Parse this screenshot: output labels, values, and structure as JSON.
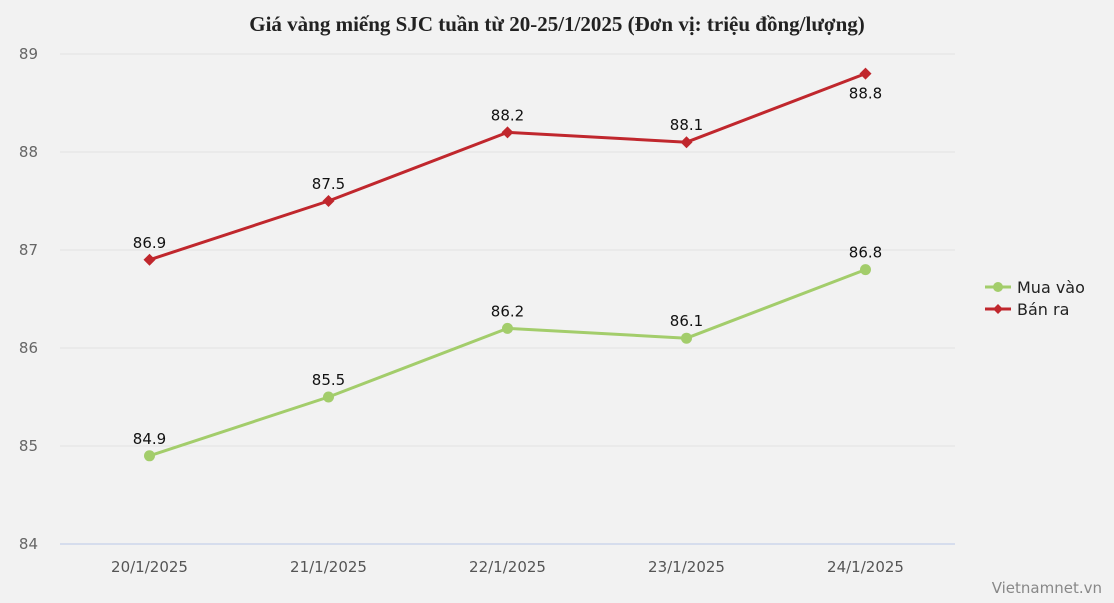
{
  "title": "Giá vàng miếng SJC tuần từ 20-25/1/2025 (Đơn vị: triệu đồng/lượng)",
  "credit": "Vietnamnet.vn",
  "legend": [
    {
      "label": "Mua vào",
      "color": "#a3cd6b",
      "marker": "circle"
    },
    {
      "label": "Bán ra",
      "color": "#c0272d",
      "marker": "diamond"
    }
  ],
  "chart_data": {
    "type": "line",
    "title": "Giá vàng miếng SJC tuần từ 20-25/1/2025 (Đơn vị: triệu đồng/lượng)",
    "xlabel": "",
    "ylabel": "",
    "categories": [
      "20/1/2025",
      "21/1/2025",
      "22/1/2025",
      "23/1/2025",
      "24/1/2025"
    ],
    "series": [
      {
        "name": "Mua vào",
        "color": "#a3cd6b",
        "values": [
          84.9,
          85.5,
          86.2,
          86.1,
          86.8
        ]
      },
      {
        "name": "Bán ra",
        "color": "#c0272d",
        "values": [
          86.9,
          87.5,
          88.2,
          88.1,
          88.8
        ]
      }
    ],
    "ylim": [
      84,
      89
    ],
    "yticks": [
      84,
      85,
      86,
      87,
      88,
      89
    ],
    "grid": true,
    "legend_position": "right",
    "data_labels": true
  }
}
